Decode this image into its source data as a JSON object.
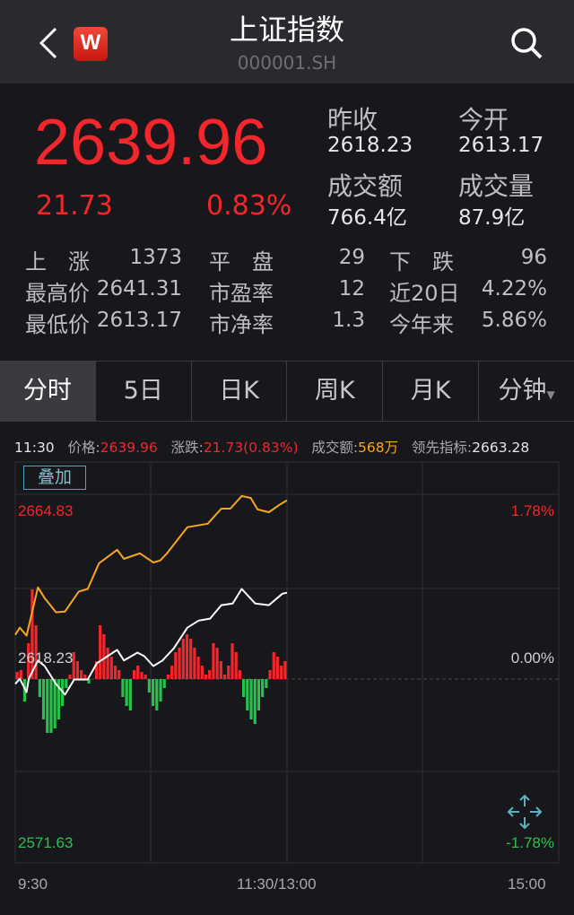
{
  "header": {
    "title": "上证指数",
    "code": "000001.SH",
    "back_icon": "chevron-left-icon",
    "logo_icon": "w-logo-icon",
    "logo_text": "W",
    "search_icon": "search-icon"
  },
  "quote": {
    "price": "2639.96",
    "change": "21.73",
    "change_pct": "0.83%",
    "prev_close_label": "昨收",
    "prev_close": "2618.23",
    "open_label": "今开",
    "open": "2613.17",
    "amount_label": "成交额",
    "amount": "766.4亿",
    "volume_label": "成交量",
    "volume": "87.9亿"
  },
  "stats": [
    [
      {
        "label": "上　涨",
        "value": "1373"
      },
      {
        "label": "平　盘",
        "value": "29"
      },
      {
        "label": "下　跌",
        "value": "96"
      }
    ],
    [
      {
        "label": "最高价",
        "value": "2641.31"
      },
      {
        "label": "市盈率",
        "value": "12"
      },
      {
        "label": "近20日",
        "value": "4.22%"
      }
    ],
    [
      {
        "label": "最低价",
        "value": "2613.17"
      },
      {
        "label": "市净率",
        "value": "1.3"
      },
      {
        "label": "今年来",
        "value": "5.86%"
      }
    ]
  ],
  "tabs": [
    "分时",
    "5日",
    "日K",
    "周K",
    "月K",
    "分钟"
  ],
  "active_tab": "分时",
  "info": {
    "time": "11:30",
    "price_label": "价格:",
    "price": "2639.96",
    "chg_label": "涨跌:",
    "chg": "21.73(0.83%)",
    "amount_label": "成交额:",
    "amount": "568万",
    "lead_label": "领先指标:",
    "lead": "2663.28"
  },
  "overlay_button": "叠加",
  "colors": {
    "up": "#f2262b",
    "down": "#2ac04d",
    "lead": "#f5a623",
    "price": "#ffffff"
  },
  "chart_data": {
    "type": "line",
    "y_max": "2664.83",
    "y_mid": "2618.23",
    "y_min": "2571.63",
    "pct_max": "1.78%",
    "pct_mid": "0.00%",
    "pct_min": "-1.78%",
    "ylim": [
      2571.63,
      2664.83
    ],
    "x_ticks": [
      "9:30",
      "11:30/13:00",
      "15:00"
    ],
    "series": [
      {
        "key": "price",
        "points": [
          [
            "9:30",
            2616.9
          ],
          [
            "9:32",
            2618.2
          ],
          [
            "9:35",
            2614.8
          ],
          [
            "9:36",
            2618.2
          ],
          [
            "9:40",
            2622.8
          ],
          [
            "9:43",
            2621.4
          ],
          [
            "9:48",
            2616.9
          ],
          [
            "9:52",
            2614.2
          ],
          [
            "9:56",
            2618.0
          ],
          [
            "10:02",
            2618.0
          ],
          [
            "10:06",
            2622.1
          ],
          [
            "10:15",
            2625.5
          ],
          [
            "10:18",
            2622.8
          ],
          [
            "10:24",
            2624.8
          ],
          [
            "10:27",
            2623.9
          ],
          [
            "10:31",
            2621.4
          ],
          [
            "10:35",
            2622.8
          ],
          [
            "10:40",
            2625.9
          ],
          [
            "10:46",
            2631.1
          ],
          [
            "10:51",
            2632.9
          ],
          [
            "10:56",
            2633.4
          ],
          [
            "11:01",
            2636.8
          ],
          [
            "11:06",
            2637.2
          ],
          [
            "11:10",
            2640.9
          ],
          [
            "11:16",
            2637.2
          ],
          [
            "11:22",
            2636.8
          ],
          [
            "11:28",
            2639.7
          ],
          [
            "11:30",
            2639.96
          ]
        ]
      },
      {
        "key": "lead",
        "points": [
          [
            "9:30",
            2629.3
          ],
          [
            "9:32",
            2631.1
          ],
          [
            "9:35",
            2629.1
          ],
          [
            "9:40",
            2641.3
          ],
          [
            "9:43",
            2638.6
          ],
          [
            "9:48",
            2635.0
          ],
          [
            "9:52",
            2635.2
          ],
          [
            "9:58",
            2640.2
          ],
          [
            "10:02",
            2640.9
          ],
          [
            "10:07",
            2647.4
          ],
          [
            "10:15",
            2650.8
          ],
          [
            "10:18",
            2648.5
          ],
          [
            "10:25",
            2649.9
          ],
          [
            "10:31",
            2647.6
          ],
          [
            "10:34",
            2648.1
          ],
          [
            "10:37",
            2649.9
          ],
          [
            "10:46",
            2656.5
          ],
          [
            "10:55",
            2657.4
          ],
          [
            "11:01",
            2661.2
          ],
          [
            "11:05",
            2661.2
          ],
          [
            "11:10",
            2664.4
          ],
          [
            "11:14",
            2663.9
          ],
          [
            "11:17",
            2661.0
          ],
          [
            "11:22",
            2660.3
          ],
          [
            "11:27",
            2662.3
          ],
          [
            "11:30",
            2663.28
          ]
        ]
      }
    ],
    "bars": [
      8,
      10,
      -25,
      40,
      100,
      60,
      -20,
      -45,
      -60,
      -60,
      -55,
      -45,
      -30,
      -10,
      5,
      30,
      20,
      10,
      5,
      -5,
      0,
      20,
      60,
      50,
      35,
      25,
      15,
      10,
      -20,
      -30,
      -35,
      10,
      15,
      8,
      5,
      -15,
      -30,
      -35,
      -25,
      -10,
      5,
      15,
      30,
      35,
      45,
      50,
      45,
      35,
      25,
      15,
      5,
      10,
      40,
      35,
      20,
      5,
      15,
      40,
      30,
      10,
      -20,
      -35,
      -45,
      -50,
      -35,
      -20,
      -10,
      10,
      30,
      25,
      15,
      20
    ]
  },
  "move_icon": "move-arrows-icon"
}
